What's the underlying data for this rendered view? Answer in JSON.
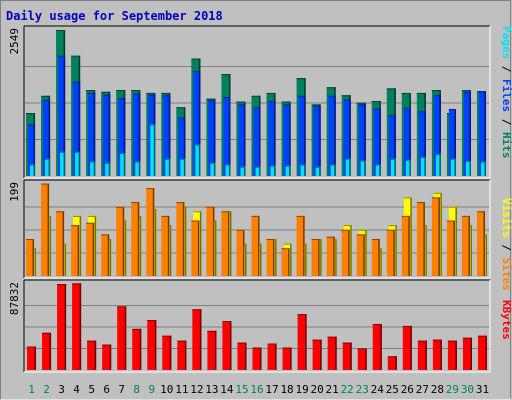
{
  "chart_data": {
    "type": "bar",
    "title": "Daily usage for September 2018",
    "panels": [
      {
        "id": "hits",
        "ymax_label": "2549",
        "ymax": 2549,
        "ylabels": [
          {
            "text": "Hits",
            "color": "#00805c"
          },
          {
            "text": " / ",
            "color": "#000000"
          },
          {
            "text": "Files",
            "color": "#0040ff"
          },
          {
            "text": " / ",
            "color": "#000000"
          },
          {
            "text": "Pages",
            "color": "#00e0ff"
          }
        ],
        "series": [
          {
            "name": "Hits",
            "color": "#00805c",
            "values": [
              1100,
              1400,
              2549,
              2100,
              1500,
              1470,
              1500,
              1500,
              1450,
              1450,
              1200,
              2050,
              1350,
              1780,
              1300,
              1400,
              1450,
              1300,
              1710,
              1250,
              1550,
              1410,
              1280,
              1310,
              1530,
              1450,
              1450,
              1500,
              1100,
              1500,
              1480
            ]
          },
          {
            "name": "Files",
            "color": "#0040ff",
            "values": [
              900,
              1330,
              2100,
              1650,
              1450,
              1420,
              1360,
              1440,
              1420,
              1410,
              1020,
              1830,
              1320,
              1380,
              1250,
              1200,
              1310,
              1250,
              1400,
              1230,
              1400,
              1340,
              1250,
              1180,
              1060,
              1190,
              1130,
              1410,
              1170,
              1470,
              1480
            ]
          },
          {
            "name": "Pages",
            "color": "#00e0ff",
            "values": [
              200,
              300,
              420,
              420,
              250,
              230,
              400,
              250,
              900,
              300,
              300,
              550,
              230,
              200,
              160,
              160,
              180,
              180,
              200,
              160,
              200,
              300,
              270,
              200,
              300,
              280,
              330,
              380,
              300,
              260,
              250
            ]
          }
        ]
      },
      {
        "id": "visits",
        "ymax_label": "199",
        "ymax": 199,
        "ylabels": [
          {
            "text": "Sites",
            "color": "#ff8000"
          },
          {
            "text": " / ",
            "color": "#000000"
          },
          {
            "text": "Visits",
            "color": "#ffff00"
          }
        ],
        "series": [
          {
            "name": "Visits",
            "color": "#ffff00",
            "values": [
              60,
              130,
              70,
              130,
              130,
              80,
              120,
              130,
              145,
              110,
              150,
              140,
              120,
              140,
              70,
              70,
              80,
              70,
              70,
              80,
              80,
              110,
              100,
              60,
              110,
              170,
              110,
              180,
              150,
              110,
              90
            ]
          },
          {
            "name": "Sites",
            "color": "#ff8000",
            "values": [
              80,
              200,
              140,
              110,
              115,
              90,
              150,
              160,
              190,
              130,
              160,
              120,
              150,
              140,
              100,
              130,
              80,
              60,
              130,
              80,
              85,
              100,
              90,
              80,
              100,
              130,
              160,
              170,
              120,
              130,
              140
            ]
          }
        ]
      },
      {
        "id": "kbytes",
        "ymax_label": "87832",
        "ymax": 87832,
        "ylabels": [
          {
            "text": "KBytes",
            "color": "#ff0000"
          }
        ],
        "series": [
          {
            "name": "KBytes",
            "color": "#ff0000",
            "values": [
              24000,
              38000,
              87832,
              88500,
              30000,
              26000,
              65000,
              42000,
              51000,
              35000,
              30000,
              62000,
              40000,
              50000,
              28000,
              23000,
              27000,
              23000,
              57000,
              31000,
              34000,
              28000,
              22000,
              47000,
              14000,
              45000,
              30000,
              31000,
              30000,
              33000,
              35000
            ]
          }
        ]
      }
    ],
    "days": [
      {
        "label": "1",
        "weekend": true
      },
      {
        "label": "2",
        "weekend": true
      },
      {
        "label": "3",
        "weekend": false
      },
      {
        "label": "4",
        "weekend": false
      },
      {
        "label": "5",
        "weekend": false
      },
      {
        "label": "6",
        "weekend": false
      },
      {
        "label": "7",
        "weekend": false
      },
      {
        "label": "8",
        "weekend": true
      },
      {
        "label": "9",
        "weekend": true
      },
      {
        "label": "10",
        "weekend": false
      },
      {
        "label": "11",
        "weekend": false
      },
      {
        "label": "12",
        "weekend": false
      },
      {
        "label": "13",
        "weekend": false
      },
      {
        "label": "14",
        "weekend": false
      },
      {
        "label": "15",
        "weekend": true
      },
      {
        "label": "16",
        "weekend": true
      },
      {
        "label": "17",
        "weekend": false
      },
      {
        "label": "18",
        "weekend": false
      },
      {
        "label": "19",
        "weekend": false
      },
      {
        "label": "20",
        "weekend": false
      },
      {
        "label": "21",
        "weekend": false
      },
      {
        "label": "22",
        "weekend": true
      },
      {
        "label": "23",
        "weekend": true
      },
      {
        "label": "24",
        "weekend": false
      },
      {
        "label": "25",
        "weekend": false
      },
      {
        "label": "26",
        "weekend": false
      },
      {
        "label": "27",
        "weekend": false
      },
      {
        "label": "28",
        "weekend": false
      },
      {
        "label": "29",
        "weekend": true
      },
      {
        "label": "30",
        "weekend": true
      },
      {
        "label": "31",
        "weekend": false
      }
    ],
    "colors": {
      "background": "#c0c0c0",
      "title": "#0000c0",
      "weekday_label": "#000000",
      "weekend_label": "#00805c",
      "gridline": "#808080"
    },
    "grid": true
  }
}
